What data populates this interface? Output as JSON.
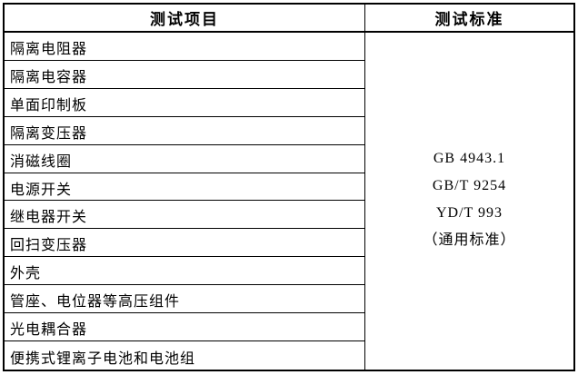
{
  "page": {
    "background": "#ffffff",
    "border_color": "#000000",
    "text_color": "#000000"
  },
  "table": {
    "headers": {
      "items_col": "测试项目",
      "standards_col": "测试标准"
    },
    "test_items": [
      "隔离电阻器",
      "隔离电容器",
      "单面印制板",
      "隔离变压器",
      "消磁线圈",
      "电源开关",
      "继电器开关",
      "回扫变压器",
      "外壳",
      "管座、电位器等高压组件",
      "光电耦合器",
      "便携式锂离子电池和电池组"
    ],
    "standards": [
      "GB 4943.1",
      "GB/T 9254",
      "YD/T 993",
      "（通用标准）"
    ]
  }
}
